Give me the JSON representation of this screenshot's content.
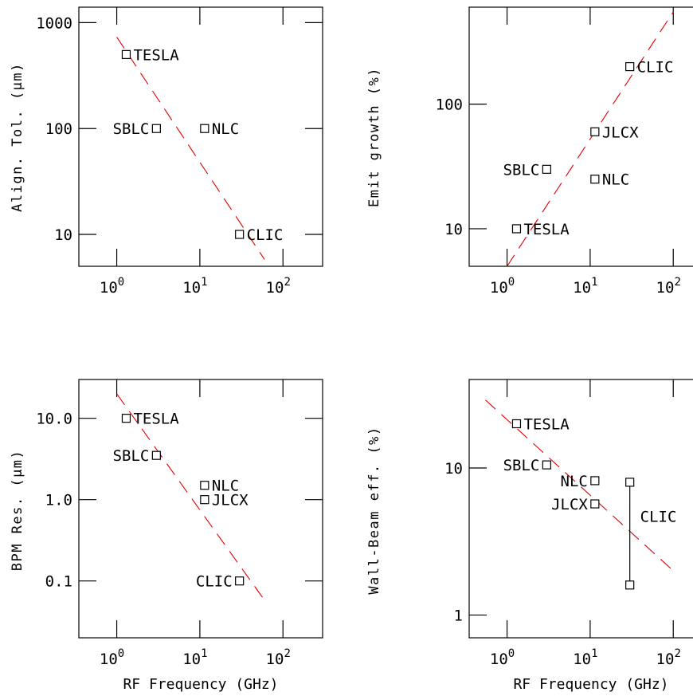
{
  "chart_data": [
    {
      "type": "scatter",
      "ylabel": "Align. Tol. (μm)",
      "xlabel": "",
      "xscale": "log",
      "yscale": "log",
      "xlim": [
        0.35,
        300
      ],
      "ylim": [
        5,
        1400
      ],
      "xticks": [
        {
          "value": 1,
          "label": "10",
          "exp": "0"
        },
        {
          "value": 10,
          "label": "10",
          "exp": "1"
        },
        {
          "value": 100,
          "label": "10",
          "exp": "2"
        }
      ],
      "yticks": [
        {
          "value": 10,
          "label": "10"
        },
        {
          "value": 100,
          "label": "100"
        },
        {
          "value": 1000,
          "label": "1000"
        }
      ],
      "points": [
        {
          "label": "TESLA",
          "x": 1.3,
          "y": 500,
          "label_side": "right"
        },
        {
          "label": "SBLC",
          "x": 3.0,
          "y": 100,
          "label_side": "left"
        },
        {
          "label": "NLC",
          "x": 11.4,
          "y": 100,
          "label_side": "right"
        },
        {
          "label": "CLIC",
          "x": 30,
          "y": 10,
          "label_side": "right"
        }
      ],
      "fit_line": {
        "x": [
          1.0,
          60
        ],
        "y": [
          730,
          5.8
        ],
        "color": "#e00000",
        "style": "dashed"
      }
    },
    {
      "type": "scatter",
      "ylabel": "Emit growth (%)",
      "xlabel": "",
      "xscale": "log",
      "yscale": "log",
      "xlim": [
        0.35,
        300
      ],
      "ylim": [
        5,
        600
      ],
      "xticks": [
        {
          "value": 1,
          "label": "10",
          "exp": "0"
        },
        {
          "value": 10,
          "label": "10",
          "exp": "1"
        },
        {
          "value": 100,
          "label": "10",
          "exp": "2"
        }
      ],
      "yticks": [
        {
          "value": 10,
          "label": "10"
        },
        {
          "value": 100,
          "label": "100"
        }
      ],
      "points": [
        {
          "label": "CLIC",
          "x": 30,
          "y": 200,
          "label_side": "right"
        },
        {
          "label": "JLCX",
          "x": 11.4,
          "y": 60,
          "label_side": "right"
        },
        {
          "label": "SBLC",
          "x": 3.0,
          "y": 30,
          "label_side": "left"
        },
        {
          "label": "NLC",
          "x": 11.4,
          "y": 25,
          "label_side": "right"
        },
        {
          "label": "TESLA",
          "x": 1.3,
          "y": 10,
          "label_side": "right"
        }
      ],
      "fit_line": {
        "x": [
          1.0,
          100
        ],
        "y": [
          5.0,
          550
        ],
        "color": "#e00000",
        "style": "dashed"
      }
    },
    {
      "type": "scatter",
      "ylabel": "BPM Res. (μm)",
      "xlabel": "RF Frequency (GHz)",
      "xscale": "log",
      "yscale": "log",
      "xlim": [
        0.35,
        300
      ],
      "ylim": [
        0.02,
        30
      ],
      "xticks": [
        {
          "value": 1,
          "label": "10",
          "exp": "0"
        },
        {
          "value": 10,
          "label": "10",
          "exp": "1"
        },
        {
          "value": 100,
          "label": "10",
          "exp": "2"
        }
      ],
      "yticks": [
        {
          "value": 0.1,
          "label": "0.1"
        },
        {
          "value": 1.0,
          "label": "1.0"
        },
        {
          "value": 10.0,
          "label": "10.0"
        }
      ],
      "points": [
        {
          "label": "TESLA",
          "x": 1.3,
          "y": 10,
          "label_side": "right"
        },
        {
          "label": "SBLC",
          "x": 3.0,
          "y": 3.5,
          "label_side": "left"
        },
        {
          "label": "NLC",
          "x": 11.4,
          "y": 1.5,
          "label_side": "right"
        },
        {
          "label": "JLCX",
          "x": 11.4,
          "y": 1.0,
          "label_side": "right"
        },
        {
          "label": "CLIC",
          "x": 30,
          "y": 0.1,
          "label_side": "left"
        }
      ],
      "fit_line": {
        "x": [
          1.0,
          60
        ],
        "y": [
          20,
          0.058
        ],
        "color": "#e00000",
        "style": "dashed"
      }
    },
    {
      "type": "scatter",
      "ylabel": "Wall-Beam eff. (%)",
      "xlabel": "RF Frequency (GHz)",
      "xscale": "log",
      "yscale": "log",
      "xlim": [
        0.35,
        300
      ],
      "ylim": [
        0.7,
        40
      ],
      "xticks": [
        {
          "value": 1,
          "label": "10",
          "exp": "0"
        },
        {
          "value": 10,
          "label": "10",
          "exp": "1"
        },
        {
          "value": 100,
          "label": "10",
          "exp": "2"
        }
      ],
      "yticks": [
        {
          "value": 1,
          "label": "1"
        },
        {
          "value": 10,
          "label": "10"
        }
      ],
      "points": [
        {
          "label": "TESLA",
          "x": 1.3,
          "y": 20,
          "label_side": "right"
        },
        {
          "label": "SBLC",
          "x": 3.0,
          "y": 10.5,
          "label_side": "left"
        },
        {
          "label": "NLC",
          "x": 11.4,
          "y": 8.2,
          "label_side": "left"
        },
        {
          "label": "JLCX",
          "x": 11.4,
          "y": 5.7,
          "label_side": "left"
        }
      ],
      "range_point": {
        "label": "CLIC",
        "x": 30,
        "y_low": 1.6,
        "y_high": 8.0
      },
      "fit_line": {
        "x": [
          0.55,
          100
        ],
        "y": [
          29,
          2.0
        ],
        "color": "#e00000",
        "style": "dashed"
      }
    }
  ]
}
